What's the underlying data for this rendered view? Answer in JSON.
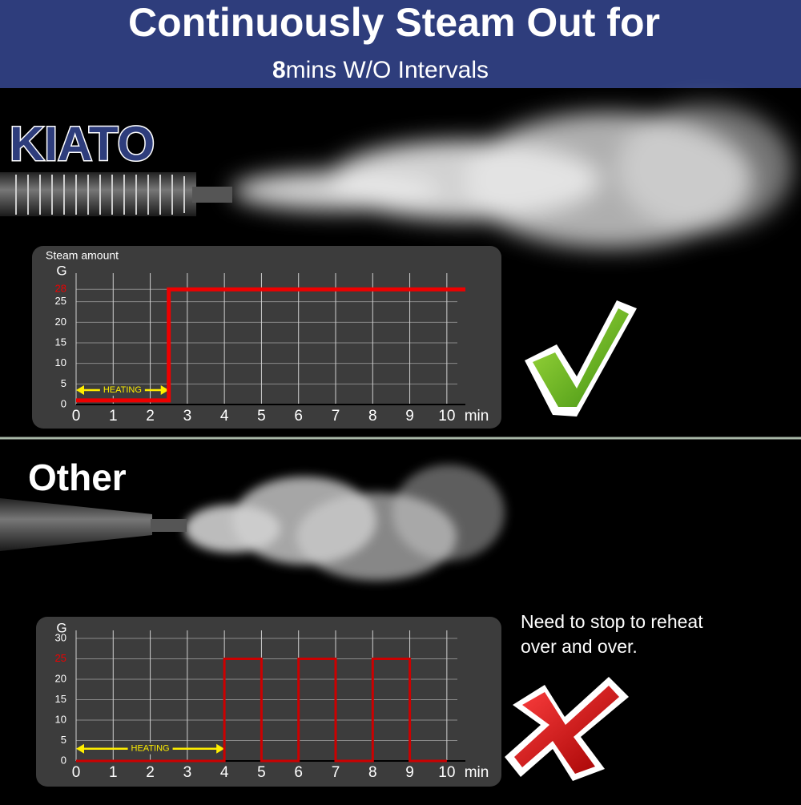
{
  "header": {
    "title": "Continuously Steam Out for",
    "subtitle_bold": "8",
    "subtitle": "mins W/O Intervals"
  },
  "brand": "KIATO",
  "other_label": "Other",
  "note": "Need to stop to reheat over and over.",
  "chart_data": [
    {
      "type": "line",
      "title": "Steam amount",
      "y_label": "G",
      "x_label": "min",
      "x": [
        0,
        2.5,
        2.5,
        10.5
      ],
      "values": [
        1,
        1,
        28,
        28
      ],
      "color": "#ee0000",
      "xlim": [
        0,
        10.5
      ],
      "xticks": [
        0,
        1,
        2,
        3,
        4,
        5,
        6,
        7,
        8,
        9,
        10
      ],
      "ylim": [
        0,
        30
      ],
      "yticks": [
        0,
        5,
        10,
        15,
        20,
        25,
        28
      ],
      "tick_highlight_color": "#ee0000",
      "grid": true,
      "annotation": {
        "text": "HEATING",
        "from": 0,
        "to": 2.5,
        "y": 3.5,
        "color": "#ffee00"
      }
    },
    {
      "type": "line",
      "y_label": "G",
      "x_label": "min",
      "x": [
        0,
        4,
        4,
        5,
        5,
        6,
        6,
        7,
        7,
        8,
        8,
        9,
        9,
        10
      ],
      "values": [
        0,
        0,
        25,
        25,
        0,
        0,
        25,
        25,
        0,
        0,
        25,
        25,
        0,
        0
      ],
      "color": "#cc0000",
      "xlim": [
        0,
        10.5
      ],
      "xticks": [
        0,
        1,
        2,
        3,
        4,
        5,
        6,
        7,
        8,
        9,
        10
      ],
      "ylim": [
        0,
        30
      ],
      "yticks": [
        0,
        5,
        10,
        15,
        20,
        25,
        30
      ],
      "tick_highlight_color": "#ee0000",
      "grid": true,
      "annotation": {
        "text": "HEATING",
        "from": 0,
        "to": 4,
        "y": 3,
        "color": "#ffee00"
      }
    }
  ]
}
